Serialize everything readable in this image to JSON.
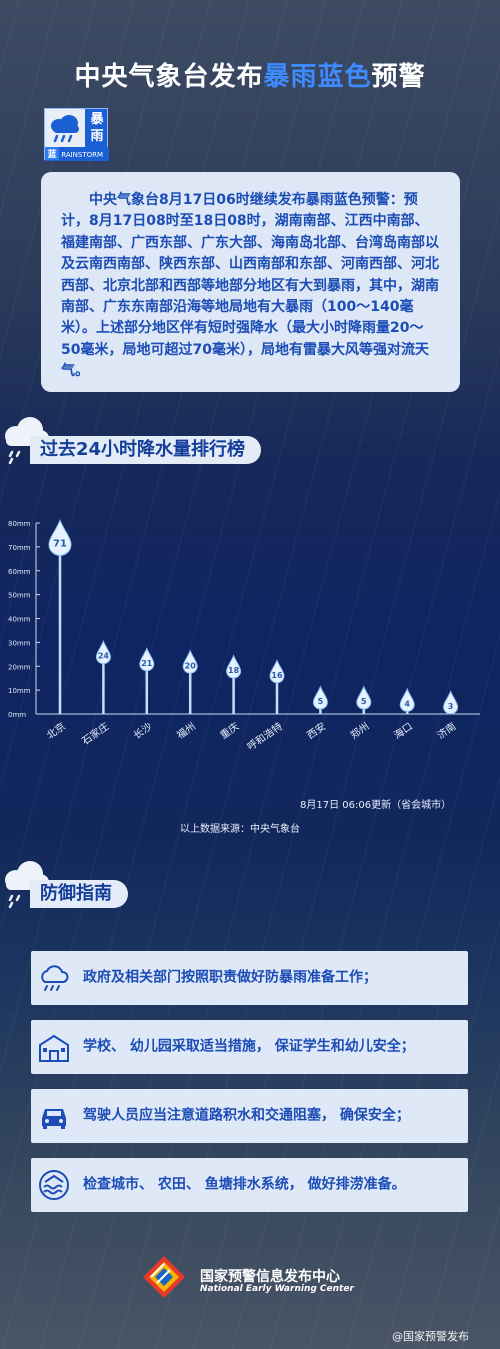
{
  "header": {
    "title_prefix": "中央气象台发布",
    "title_highlight": "暴雨蓝色",
    "title_suffix": "预警"
  },
  "badge": {
    "type_label": "暴雨",
    "level_label": "蓝",
    "en_label": "RAINSTORM",
    "icon": "rain-cloud-icon",
    "color": "#1a5fd4"
  },
  "bulletin": {
    "text": "中央气象台8月17日06时继续发布暴雨蓝色预警：预计，8月17日08时至18日08时，湖南南部、江西中南部、福建南部、广西东部、广东大部、海南岛北部、台湾岛南部以及云南西南部、陕西东部、山西南部和东部、河南西部、河北西部、北京北部和西部等地部分地区有大到暴雨，其中，湖南南部、广东东南部沿海等地局地有大暴雨（100～140毫米）。上述部分地区伴有短时强降水（最大小时降雨量20～50毫米，局地可超过70毫米），局地有雷暴大风等强对流天气。"
  },
  "ranking_section": {
    "title": "过去24小时降水量排行榜",
    "icon": "rain-cloud-icon"
  },
  "chart_data": {
    "type": "bar",
    "categories": [
      "北京",
      "石家庄",
      "长沙",
      "福州",
      "重庆",
      "呼和浩特",
      "西安",
      "郑州",
      "海口",
      "济南"
    ],
    "values": [
      71,
      24,
      21,
      20,
      18,
      16,
      5,
      5,
      4,
      3
    ],
    "y_ticks": [
      "0mm",
      "10mm",
      "20mm",
      "30mm",
      "40mm",
      "50mm",
      "60mm",
      "70mm",
      "80mm"
    ],
    "ylim": [
      0,
      80
    ],
    "mark": "raindrop",
    "color": "#bfe0ff"
  },
  "update_note": "8月17日  06:06更新（省会城市）",
  "source_note": "以上数据来源：中央气象台",
  "defense_section": {
    "title": "防御指南",
    "icon": "rain-cloud-icon"
  },
  "tips": [
    {
      "icon": "rain-cloud-icon",
      "text": "政府及相关部门按照职责做好防暴雨准备工作；"
    },
    {
      "icon": "school-icon",
      "text": "学校、 幼儿园采取适当措施， 保证学生和幼儿安全；"
    },
    {
      "icon": "car-icon",
      "text": "驾驶人员应当注意道路积水和交通阻塞， 确保安全；"
    },
    {
      "icon": "drainage-icon",
      "text": "检查城市、 农田、 鱼塘排水系统， 做好排涝准备。"
    }
  ],
  "footer": {
    "org_cn": "国家预警信息发布中心",
    "org_en": "National Early Warning Center",
    "logo": "nwc-logo-icon"
  },
  "watermark": "@国家预警发布"
}
